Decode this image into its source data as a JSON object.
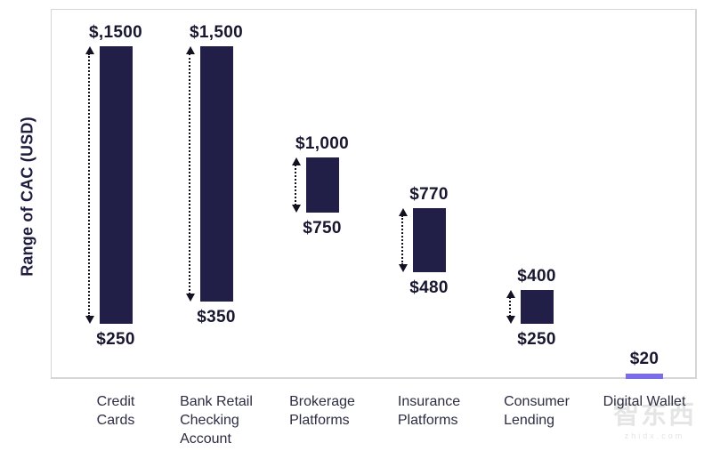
{
  "watermark": {
    "logo": "智东西",
    "domain": "zhidx.com"
  },
  "chart_data": {
    "type": "bar",
    "subtype": "floating-range-columns",
    "title": "",
    "xlabel": "",
    "ylabel": "Range of CAC (USD)",
    "ylim": [
      0,
      1670
    ],
    "grid": false,
    "legend": "none",
    "categories": [
      "Credit Cards",
      "Bank Retail Checking Account",
      "Brokerage Platforms",
      "Insurance Platforms",
      "Consumer Lending",
      "Digital Wallet"
    ],
    "bars": [
      {
        "category": "Credit Cards",
        "label_lines": [
          "Credit",
          "Cards"
        ],
        "min": 250,
        "max": 1500,
        "min_label": "$250",
        "max_label": "$,1500",
        "style": "range"
      },
      {
        "category": "Bank Retail Checking Account",
        "label_lines": [
          "Bank Retail",
          "Checking",
          "Account"
        ],
        "min": 350,
        "max": 1500,
        "min_label": "$350",
        "max_label": "$1,500",
        "style": "range"
      },
      {
        "category": "Brokerage Platforms",
        "label_lines": [
          "Brokerage",
          "Platforms"
        ],
        "min": 750,
        "max": 1000,
        "min_label": "$750",
        "max_label": "$1,000",
        "style": "range"
      },
      {
        "category": "Insurance Platforms",
        "label_lines": [
          "Insurance",
          "Platforms"
        ],
        "min": 480,
        "max": 770,
        "min_label": "$480",
        "max_label": "$770",
        "style": "range"
      },
      {
        "category": "Consumer Lending",
        "label_lines": [
          "Consumer",
          "Lending"
        ],
        "min": 250,
        "max": 400,
        "min_label": "$250",
        "max_label": "$400",
        "style": "range"
      },
      {
        "category": "Digital Wallet",
        "label_lines": [
          "Digital Wallet"
        ],
        "min": 20,
        "max": 20,
        "max_label": "$20",
        "style": "line"
      }
    ],
    "colors": {
      "bar": "#211f47",
      "accent_line": "#7b6ce8",
      "value_label": "#18172f",
      "category_label": "#2d2d42",
      "axis_border": "#d6d6d6",
      "arrow": "#121222"
    }
  }
}
